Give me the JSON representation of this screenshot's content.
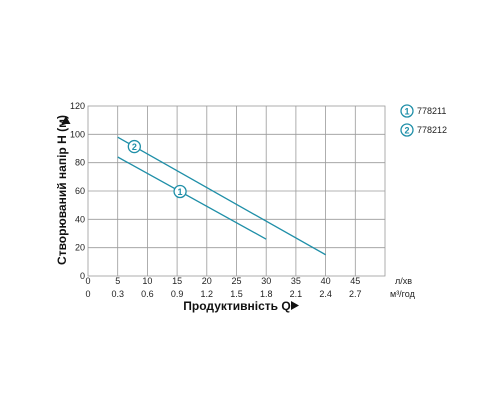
{
  "chart_data": {
    "type": "line",
    "title": "",
    "ylabel": "Створюваний напір Н (м)",
    "xlabel": "Продуктивність Q",
    "x_unit": "л/хв",
    "x2_unit": "м³/год",
    "xlim": [
      0,
      50
    ],
    "ylim": [
      0,
      120
    ],
    "x_ticks": [
      "0",
      "5",
      "10",
      "15",
      "20",
      "25",
      "30",
      "35",
      "40",
      "45"
    ],
    "x2_ticks": [
      "0",
      "0.3",
      "0.6",
      "0.9",
      "1.2",
      "1.5",
      "1.8",
      "2.1",
      "2.4",
      "2.7"
    ],
    "y_ticks": [
      "0",
      "20",
      "40",
      "60",
      "80",
      "100",
      "120"
    ],
    "grid": true,
    "line_color": "#1f8fa8",
    "series": [
      {
        "name": "778211",
        "marker": "1",
        "x": [
          5,
          30
        ],
        "y": [
          84,
          26
        ]
      },
      {
        "name": "778212",
        "marker": "2",
        "x": [
          5,
          40
        ],
        "y": [
          98,
          15
        ]
      }
    ],
    "legend": [
      {
        "marker": "1",
        "label": "778211"
      },
      {
        "marker": "2",
        "label": "778212"
      }
    ]
  }
}
